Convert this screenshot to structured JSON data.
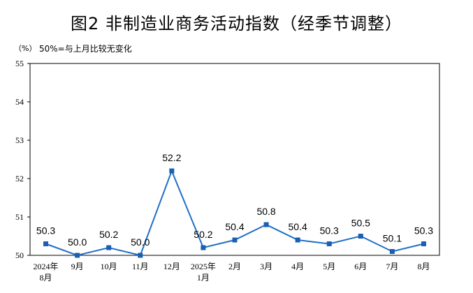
{
  "title": "图2 非制造业商务活动指数（经季节调整）",
  "unit": "（%）",
  "note": "50%=与上月比较无变化",
  "colors": {
    "line": "#1f6fc5",
    "marker": "#1a5fb4",
    "axis": "#000000"
  },
  "chart_data": {
    "type": "line",
    "categories": [
      [
        "2024年",
        "8月"
      ],
      [
        "9月"
      ],
      [
        "10月"
      ],
      [
        "11月"
      ],
      [
        "12月"
      ],
      [
        "2025年",
        "1月"
      ],
      [
        "2月"
      ],
      [
        "3月"
      ],
      [
        "4月"
      ],
      [
        "5月"
      ],
      [
        "6月"
      ],
      [
        "7月"
      ],
      [
        "8月"
      ]
    ],
    "values": [
      50.3,
      50.0,
      50.2,
      50.0,
      52.2,
      50.2,
      50.4,
      50.8,
      50.4,
      50.3,
      50.5,
      50.1,
      50.3
    ],
    "data_labels": [
      "50.3",
      "50.0",
      "50.2",
      "50.0",
      "52.2",
      "50.2",
      "50.4",
      "50.8",
      "50.4",
      "50.3",
      "50.5",
      "50.1",
      "50.3"
    ],
    "ylim": [
      50,
      55
    ],
    "yticks": [
      50,
      51,
      52,
      53,
      54,
      55
    ],
    "grid": false,
    "legend": "none",
    "marker": "square"
  }
}
